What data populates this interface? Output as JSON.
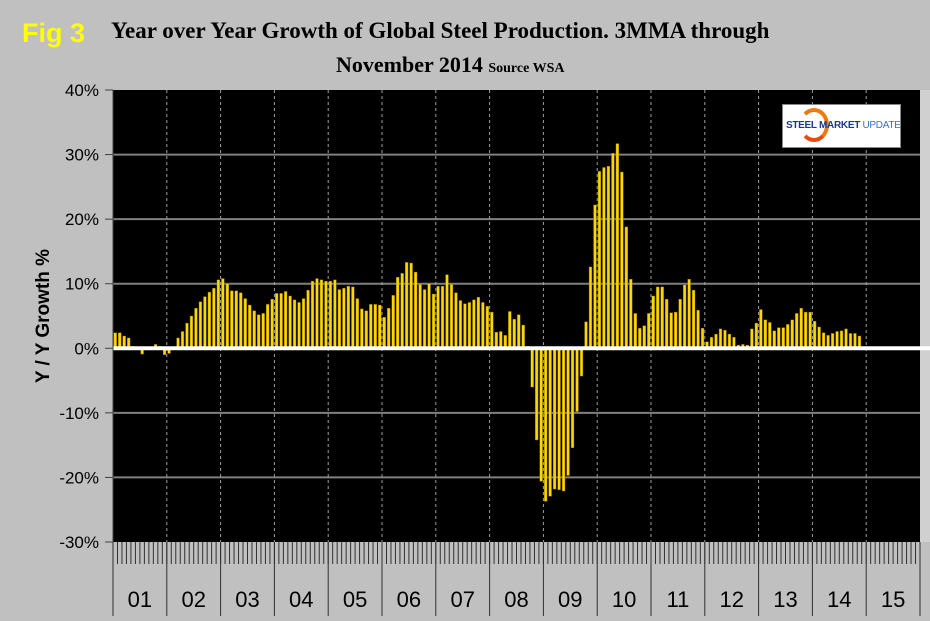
{
  "figure_label": "Fig 3",
  "chart_data": {
    "type": "bar",
    "title": "Year over Year Growth of Global Steel Production. 3MMA through",
    "title_line2": "November 2014",
    "source_note": "Source WSA",
    "ylabel": "Y / Y Growth %",
    "xlabel": "",
    "ylim": [
      -30,
      40
    ],
    "yticks": [
      "40%",
      "30%",
      "20%",
      "10%",
      "0%",
      "-10%",
      "-20%",
      "-30%"
    ],
    "ytick_values": [
      40,
      30,
      20,
      10,
      0,
      -10,
      -20,
      -30
    ],
    "year_labels": [
      "01",
      "02",
      "03",
      "04",
      "05",
      "06",
      "07",
      "08",
      "09",
      "10",
      "11",
      "12",
      "13",
      "14",
      "15"
    ],
    "x_start": "2001-01",
    "x_end": "2014-11",
    "grid": true,
    "bar_color": "#FFD700",
    "zero_line_color": "#FFFFFF",
    "values": [
      2.4,
      2.4,
      1.9,
      1.6,
      0.3,
      0.0,
      -0.9,
      0.0,
      0.0,
      0.6,
      0.3,
      -1.0,
      -0.8,
      0.0,
      1.6,
      2.6,
      3.9,
      5.0,
      6.2,
      7.2,
      8.0,
      8.7,
      9.3,
      10.6,
      10.8,
      10.0,
      8.9,
      8.9,
      8.6,
      7.7,
      6.7,
      5.8,
      5.2,
      5.4,
      6.8,
      7.6,
      8.5,
      8.5,
      8.8,
      8.1,
      7.5,
      7.1,
      7.7,
      9.0,
      10.4,
      10.8,
      10.6,
      10.4,
      10.4,
      10.6,
      9.1,
      9.3,
      9.6,
      9.5,
      7.7,
      6.1,
      5.8,
      6.8,
      6.8,
      6.7,
      4.8,
      6.2,
      8.2,
      11.0,
      11.6,
      13.3,
      13.2,
      11.8,
      9.9,
      9.1,
      10.0,
      8.4,
      9.6,
      9.6,
      11.4,
      9.9,
      8.6,
      7.4,
      6.9,
      7.1,
      7.5,
      7.9,
      7.1,
      6.5,
      5.6,
      2.5,
      2.6,
      2.0,
      5.7,
      4.5,
      5.2,
      3.6,
      0.3,
      -6.0,
      -14.2,
      -20.6,
      -23.7,
      -22.9,
      -21.8,
      -21.9,
      -22.1,
      -19.7,
      -15.4,
      -9.8,
      -4.3,
      4.1,
      12.6,
      22.2,
      27.4,
      28.0,
      28.2,
      30.2,
      31.7,
      27.3,
      18.8,
      10.7,
      5.4,
      3.1,
      3.5,
      5.4,
      8.1,
      9.5,
      9.5,
      7.6,
      5.5,
      5.6,
      7.6,
      9.8,
      10.7,
      9.0,
      5.9,
      3.1,
      1.0,
      1.7,
      2.2,
      3.0,
      2.8,
      2.2,
      1.7,
      0.5,
      0.6,
      0.5,
      3.0,
      3.9,
      6.0,
      4.4,
      4.0,
      2.7,
      3.2,
      3.2,
      3.7,
      4.4,
      5.4,
      6.2,
      5.6,
      5.6,
      4.2,
      3.3,
      2.4,
      2.0,
      2.3,
      2.6,
      2.7,
      3.0,
      2.3,
      2.3,
      1.9
    ]
  },
  "logo": {
    "text_bold": "STEEL MARKET",
    "text_light": "UPDATE"
  }
}
